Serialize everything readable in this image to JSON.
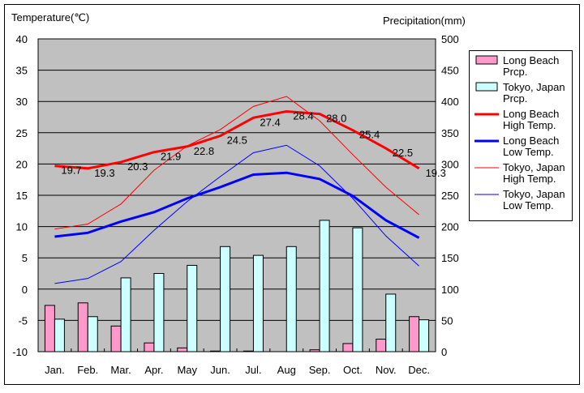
{
  "chart_data": {
    "type": "bar+line",
    "y_left_label": "Temperature(℃)",
    "y_right_label": "Precipitation(mm)",
    "ylim_left": [
      -10,
      40
    ],
    "ylim_right": [
      0,
      500
    ],
    "left_ticks": [
      "-10",
      "-5",
      "0",
      "5",
      "10",
      "15",
      "20",
      "25",
      "30",
      "35",
      "40"
    ],
    "right_ticks": [
      "0",
      "50",
      "100",
      "150",
      "200",
      "250",
      "300",
      "350",
      "400",
      "450",
      "500"
    ],
    "categories": [
      "Jan.",
      "Feb.",
      "Mar.",
      "Apr.",
      "May",
      "Jun.",
      "Jul.",
      "Aug",
      "Sep.",
      "Oct.",
      "Nov.",
      "Dec."
    ],
    "bars": [
      {
        "name": "Long Beach Prcp.",
        "color": "#ff99cc",
        "values": [
          74,
          78,
          41,
          14,
          6,
          1,
          1,
          0,
          3,
          13,
          20,
          56
        ]
      },
      {
        "name": "Tokyo, Japan Prcp.",
        "color": "#ccffff",
        "values": [
          52,
          56,
          118,
          125,
          138,
          168,
          154,
          168,
          210,
          198,
          92,
          51
        ]
      }
    ],
    "lines": [
      {
        "name": "Long Beach High Temp.",
        "color": "#ff0000",
        "width": 3,
        "values": [
          19.7,
          19.3,
          20.3,
          21.9,
          22.8,
          24.5,
          27.4,
          28.4,
          28.0,
          25.4,
          22.5,
          19.3
        ],
        "labels": [
          "19.7",
          "19.3",
          "20.3",
          "21.9",
          "22.8",
          "24.5",
          "27.4",
          "28.4",
          "28.0",
          "25.4",
          "22.5",
          "19.3"
        ]
      },
      {
        "name": "Long Beach Low Temp.",
        "color": "#0000ff",
        "width": 3,
        "values": [
          8.4,
          9.0,
          10.8,
          12.3,
          14.5,
          16.3,
          18.3,
          18.6,
          17.6,
          14.9,
          11.0,
          8.2
        ]
      },
      {
        "name": "Tokyo, Japan High Temp.",
        "color": "#ff0000",
        "width": 1,
        "values": [
          9.6,
          10.4,
          13.6,
          19.0,
          22.9,
          25.5,
          29.2,
          30.8,
          26.9,
          21.5,
          16.3,
          11.9
        ]
      },
      {
        "name": "Tokyo, Japan Low Temp.",
        "color": "#0000ff",
        "width": 1,
        "values": [
          0.9,
          1.7,
          4.4,
          9.4,
          14.0,
          18.0,
          21.8,
          23.0,
          19.7,
          14.5,
          8.5,
          3.7
        ]
      }
    ],
    "legend": [
      [
        "Long Beach",
        "Prcp."
      ],
      [
        "Tokyo, Japan",
        "Prcp."
      ],
      [
        "Long Beach",
        "High Temp."
      ],
      [
        "Long Beach",
        "Low Temp."
      ],
      [
        "Tokyo, Japan",
        "High Temp."
      ],
      [
        "Tokyo, Japan",
        "Low Temp."
      ]
    ],
    "legend_placement": "right"
  }
}
